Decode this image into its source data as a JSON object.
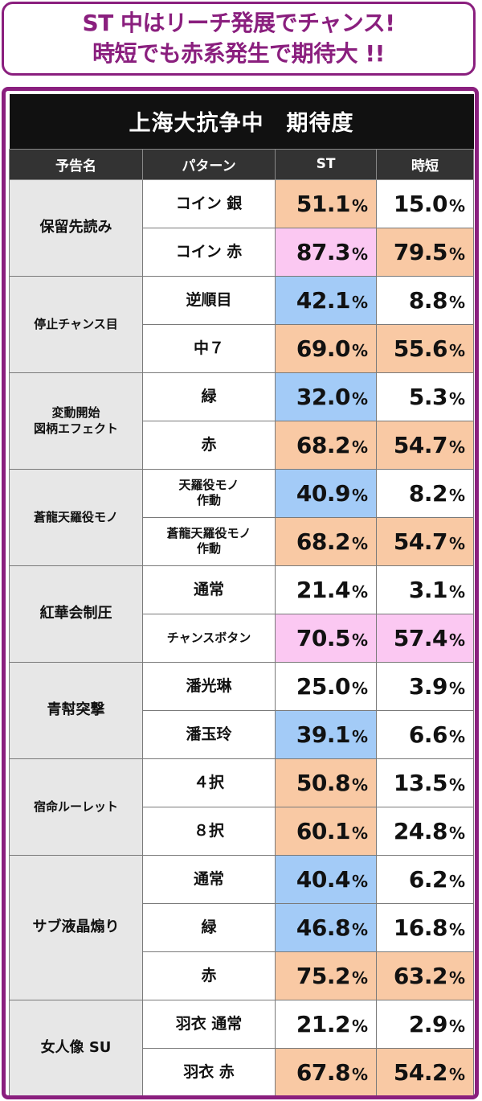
{
  "banner": {
    "line1": "ST 中はリーチ発展でチャンス!",
    "line2": "時短でも赤系発生で期待大 !!"
  },
  "table": {
    "title": "上海大抗争中　期待度",
    "headers": {
      "notice": "予告名",
      "pattern": "パターン",
      "st": "ST",
      "jitan": "時短"
    },
    "percent_sign": "%",
    "colors": {
      "orange": "#f9c9a4",
      "pink": "#fbc8f2",
      "blue": "#a3cbf7",
      "white": "#ffffff"
    },
    "groups": [
      {
        "name": "保留先読み",
        "rows": [
          {
            "pattern": "コイン 銀",
            "st": "51.1",
            "st_color": "orange",
            "jitan": "15.0",
            "jitan_color": "white"
          },
          {
            "pattern": "コイン 赤",
            "st": "87.3",
            "st_color": "pink",
            "jitan": "79.5",
            "jitan_color": "orange"
          }
        ]
      },
      {
        "name": "停止チャンス目",
        "rows": [
          {
            "pattern": "逆順目",
            "st": "42.1",
            "st_color": "blue",
            "jitan": "8.8",
            "jitan_color": "white"
          },
          {
            "pattern": "中７",
            "st": "69.0",
            "st_color": "orange",
            "jitan": "55.6",
            "jitan_color": "orange"
          }
        ]
      },
      {
        "name": "変動開始\n図柄エフェクト",
        "rows": [
          {
            "pattern": "緑",
            "st": "32.0",
            "st_color": "blue",
            "jitan": "5.3",
            "jitan_color": "white"
          },
          {
            "pattern": "赤",
            "st": "68.2",
            "st_color": "orange",
            "jitan": "54.7",
            "jitan_color": "orange"
          }
        ]
      },
      {
        "name": "蒼龍天羅役モノ",
        "rows": [
          {
            "pattern": "天羅役モノ\n作動",
            "st": "40.9",
            "st_color": "blue",
            "jitan": "8.2",
            "jitan_color": "white"
          },
          {
            "pattern": "蒼龍天羅役モノ\n作動",
            "st": "68.2",
            "st_color": "orange",
            "jitan": "54.7",
            "jitan_color": "orange"
          }
        ]
      },
      {
        "name": "紅華会制圧",
        "rows": [
          {
            "pattern": "通常",
            "st": "21.4",
            "st_color": "white",
            "jitan": "3.1",
            "jitan_color": "white"
          },
          {
            "pattern": "チャンスボタン",
            "st": "70.5",
            "st_color": "pink",
            "jitan": "57.4",
            "jitan_color": "pink"
          }
        ]
      },
      {
        "name": "青幇突撃",
        "rows": [
          {
            "pattern": "潘光琳",
            "st": "25.0",
            "st_color": "white",
            "jitan": "3.9",
            "jitan_color": "white"
          },
          {
            "pattern": "潘玉玲",
            "st": "39.1",
            "st_color": "blue",
            "jitan": "6.6",
            "jitan_color": "white"
          }
        ]
      },
      {
        "name": "宿命ルーレット",
        "rows": [
          {
            "pattern": "４択",
            "st": "50.8",
            "st_color": "orange",
            "jitan": "13.5",
            "jitan_color": "white"
          },
          {
            "pattern": "８択",
            "st": "60.1",
            "st_color": "orange",
            "jitan": "24.8",
            "jitan_color": "white"
          }
        ]
      },
      {
        "name": "サブ液晶煽り",
        "rows": [
          {
            "pattern": "通常",
            "st": "40.4",
            "st_color": "blue",
            "jitan": "6.2",
            "jitan_color": "white"
          },
          {
            "pattern": "緑",
            "st": "46.8",
            "st_color": "blue",
            "jitan": "16.8",
            "jitan_color": "white"
          },
          {
            "pattern": "赤",
            "st": "75.2",
            "st_color": "orange",
            "jitan": "63.2",
            "jitan_color": "orange"
          }
        ]
      },
      {
        "name": "女人像 SU",
        "rows": [
          {
            "pattern": "羽衣 通常",
            "st": "21.2",
            "st_color": "white",
            "jitan": "2.9",
            "jitan_color": "white"
          },
          {
            "pattern": "羽衣 赤",
            "st": "67.8",
            "st_color": "orange",
            "jitan": "54.2",
            "jitan_color": "orange"
          }
        ]
      }
    ]
  }
}
